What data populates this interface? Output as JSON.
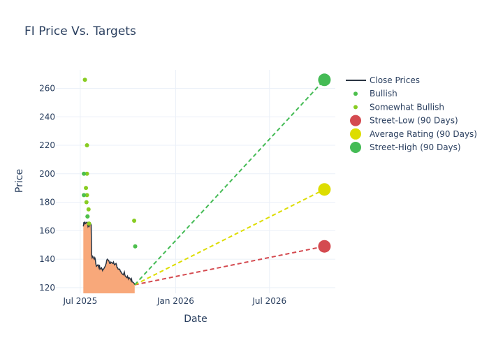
{
  "chart_data": {
    "type": "line",
    "title": "FI Price Vs. Targets",
    "xlabel": "Date",
    "ylabel": "Price",
    "xlim": [
      "2025-05-15",
      "2026-11-05"
    ],
    "ylim": [
      116,
      273
    ],
    "x_ticks": [
      {
        "date": "2025-07-01",
        "label": "Jul 2025"
      },
      {
        "date": "2026-01-01",
        "label": "Jan 2026"
      },
      {
        "date": "2026-07-01",
        "label": "Jul 2026"
      }
    ],
    "y_ticks": [
      120,
      140,
      160,
      180,
      200,
      220,
      240,
      260
    ],
    "grid": true,
    "legend_position": "right",
    "colors": {
      "close": "#2a3442",
      "area_fill": "#f8a87a",
      "bullish": "#4cbf4c",
      "somewhat_bullish": "#88cc22",
      "street_low": "#d44a50",
      "average": "#dddd00",
      "street_high": "#44bb55"
    },
    "close_prices": {
      "name": "Close Prices",
      "points": [
        [
          "2025-07-07",
          163
        ],
        [
          "2025-07-08",
          166
        ],
        [
          "2025-07-09",
          165
        ],
        [
          "2025-07-10",
          166
        ],
        [
          "2025-07-11",
          165
        ],
        [
          "2025-07-14",
          166
        ],
        [
          "2025-07-15",
          165
        ],
        [
          "2025-07-16",
          163
        ],
        [
          "2025-07-17",
          164
        ],
        [
          "2025-07-18",
          163
        ],
        [
          "2025-07-21",
          165
        ],
        [
          "2025-07-22",
          164
        ],
        [
          "2025-07-23",
          143
        ],
        [
          "2025-07-24",
          141
        ],
        [
          "2025-07-25",
          142
        ],
        [
          "2025-07-28",
          140
        ],
        [
          "2025-07-29",
          141
        ],
        [
          "2025-07-30",
          140
        ],
        [
          "2025-07-31",
          137
        ],
        [
          "2025-08-01",
          135
        ],
        [
          "2025-08-04",
          136
        ],
        [
          "2025-08-05",
          135
        ],
        [
          "2025-08-06",
          134
        ],
        [
          "2025-08-07",
          136
        ],
        [
          "2025-08-08",
          133
        ],
        [
          "2025-08-11",
          134
        ],
        [
          "2025-08-12",
          133
        ],
        [
          "2025-08-13",
          132
        ],
        [
          "2025-08-14",
          133
        ],
        [
          "2025-08-15",
          133
        ],
        [
          "2025-08-18",
          135
        ],
        [
          "2025-08-19",
          136
        ],
        [
          "2025-08-20",
          137
        ],
        [
          "2025-08-21",
          139
        ],
        [
          "2025-08-22",
          140
        ],
        [
          "2025-08-25",
          139
        ],
        [
          "2025-08-26",
          138
        ],
        [
          "2025-08-27",
          137
        ],
        [
          "2025-08-28",
          137
        ],
        [
          "2025-08-29",
          138
        ],
        [
          "2025-09-02",
          137
        ],
        [
          "2025-09-03",
          138
        ],
        [
          "2025-09-04",
          137
        ],
        [
          "2025-09-05",
          136
        ],
        [
          "2025-09-08",
          137
        ],
        [
          "2025-09-09",
          136
        ],
        [
          "2025-09-10",
          134
        ],
        [
          "2025-09-11",
          134
        ],
        [
          "2025-09-12",
          133
        ],
        [
          "2025-09-15",
          133
        ],
        [
          "2025-09-16",
          132
        ],
        [
          "2025-09-17",
          131
        ],
        [
          "2025-09-18",
          131
        ],
        [
          "2025-09-19",
          130
        ],
        [
          "2025-09-22",
          129
        ],
        [
          "2025-09-23",
          130
        ],
        [
          "2025-09-24",
          131
        ],
        [
          "2025-09-25",
          129
        ],
        [
          "2025-09-26",
          128
        ],
        [
          "2025-09-29",
          127
        ],
        [
          "2025-09-30",
          128
        ],
        [
          "2025-10-01",
          127
        ],
        [
          "2025-10-02",
          126
        ],
        [
          "2025-10-03",
          127
        ],
        [
          "2025-10-06",
          126
        ],
        [
          "2025-10-07",
          125
        ],
        [
          "2025-10-08",
          126
        ],
        [
          "2025-10-09",
          124
        ],
        [
          "2025-10-10",
          124
        ],
        [
          "2025-10-13",
          123
        ],
        [
          "2025-10-14",
          122
        ]
      ]
    },
    "bullish": {
      "name": "Bullish",
      "points": [
        [
          "2025-07-08",
          200
        ],
        [
          "2025-07-08",
          185
        ],
        [
          "2025-07-15",
          170
        ],
        [
          "2025-10-15",
          149
        ]
      ]
    },
    "somewhat_bullish": {
      "name": "Somewhat Bullish",
      "points": [
        [
          "2025-07-10",
          266
        ],
        [
          "2025-07-14",
          220
        ],
        [
          "2025-07-14",
          200
        ],
        [
          "2025-07-12",
          190
        ],
        [
          "2025-07-14",
          185
        ],
        [
          "2025-07-13",
          180
        ],
        [
          "2025-07-17",
          175
        ],
        [
          "2025-07-15",
          170
        ],
        [
          "2025-07-18",
          165
        ],
        [
          "2025-10-13",
          167
        ]
      ]
    },
    "targets": {
      "start": [
        "2025-10-14",
        122
      ],
      "end_date": "2026-10-15",
      "street_low": {
        "name": "Street-Low (90 Days)",
        "value": 149
      },
      "average": {
        "name": "Average Rating (90 Days)",
        "value": 189
      },
      "street_high": {
        "name": "Street-High (90 Days)",
        "value": 266
      }
    },
    "legend": [
      {
        "key": "close",
        "label": "Close Prices",
        "kind": "line"
      },
      {
        "key": "bullish",
        "label": "Bullish",
        "kind": "dot"
      },
      {
        "key": "somewhat_bullish",
        "label": "Somewhat Bullish",
        "kind": "dot"
      },
      {
        "key": "street_low",
        "label": "Street-Low (90 Days)",
        "kind": "big"
      },
      {
        "key": "average",
        "label": "Average Rating (90 Days)",
        "kind": "big"
      },
      {
        "key": "street_high",
        "label": "Street-High (90 Days)",
        "kind": "big"
      }
    ]
  }
}
